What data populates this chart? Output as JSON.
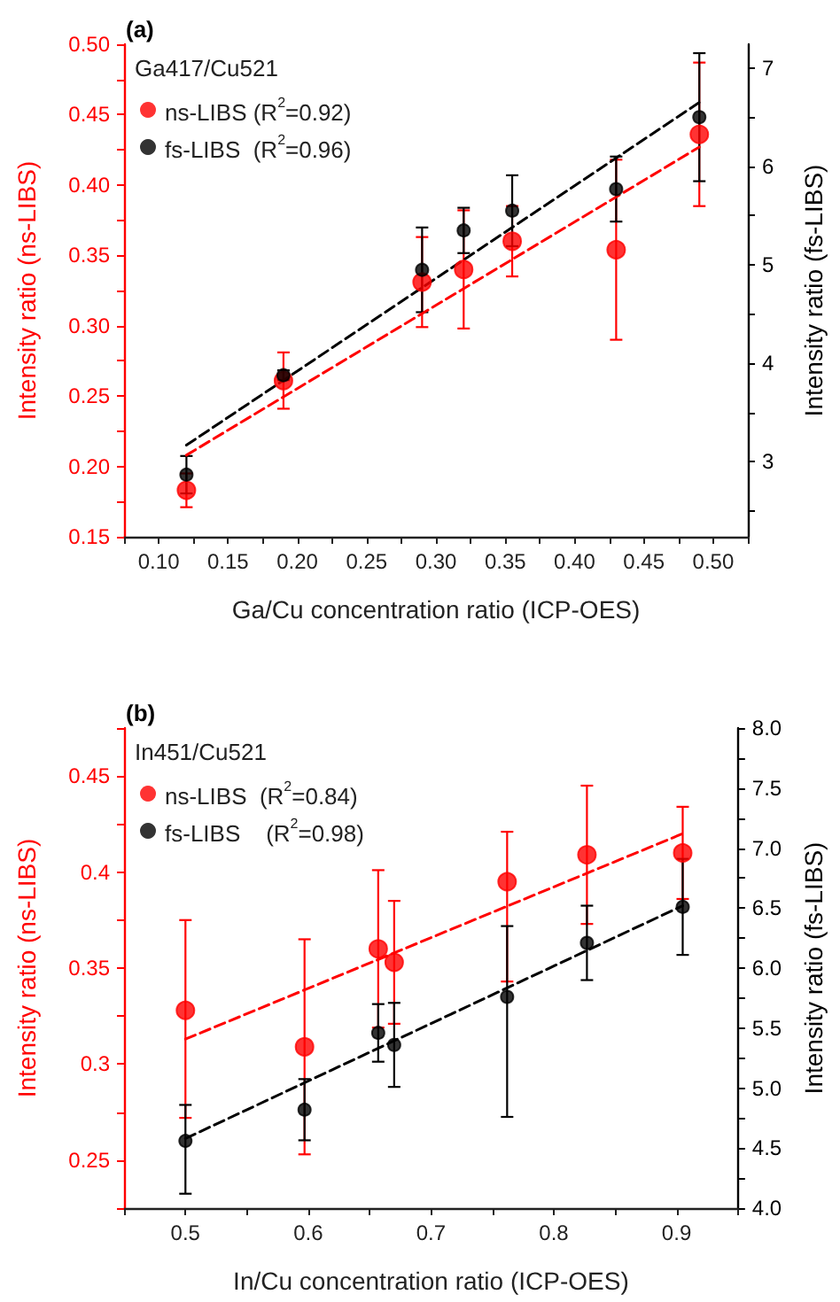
{
  "chart_data": [
    {
      "type": "scatter",
      "title": "(a)",
      "legend_title": "Ga417/Cu521",
      "xlabel": "Ga/Cu concentration ratio (ICP-OES)",
      "ylabel": "Intensity ratio (ns-LIBS)",
      "y2label": "Intensity ratio (fs-LIBS)",
      "legend": "top left",
      "grid": false,
      "marker": "circle",
      "x": [
        0.12,
        0.19,
        0.29,
        0.32,
        0.355,
        0.43,
        0.49
      ],
      "xlim": [
        0.075,
        0.525
      ],
      "xticks": [
        {
          "value": 0.075,
          "label": null
        },
        {
          "value": 0.1,
          "label": "0.10"
        },
        {
          "value": 0.125,
          "label": null
        },
        {
          "value": 0.15,
          "label": "0.15"
        },
        {
          "value": 0.175,
          "label": null
        },
        {
          "value": 0.2,
          "label": "0.20"
        },
        {
          "value": 0.225,
          "label": null
        },
        {
          "value": 0.25,
          "label": "0.25"
        },
        {
          "value": 0.275,
          "label": null
        },
        {
          "value": 0.3,
          "label": "0.30"
        },
        {
          "value": 0.325,
          "label": null
        },
        {
          "value": 0.35,
          "label": "0.35"
        },
        {
          "value": 0.375,
          "label": null
        },
        {
          "value": 0.4,
          "label": "0.40"
        },
        {
          "value": 0.425,
          "label": null
        },
        {
          "value": 0.45,
          "label": "0.45"
        },
        {
          "value": 0.475,
          "label": null
        },
        {
          "value": 0.5,
          "label": "0.50"
        },
        {
          "value": 0.525,
          "label": null
        }
      ],
      "ylim": [
        0.15,
        0.5
      ],
      "yticks": [
        {
          "value": 0.15,
          "label": "0.15"
        },
        {
          "value": 0.175,
          "label": null
        },
        {
          "value": 0.2,
          "label": "0.20"
        },
        {
          "value": 0.225,
          "label": null
        },
        {
          "value": 0.25,
          "label": "0.25"
        },
        {
          "value": 0.275,
          "label": null
        },
        {
          "value": 0.3,
          "label": "0.30"
        },
        {
          "value": 0.325,
          "label": null
        },
        {
          "value": 0.35,
          "label": "0.35"
        },
        {
          "value": 0.375,
          "label": null
        },
        {
          "value": 0.4,
          "label": "0.40"
        },
        {
          "value": 0.425,
          "label": null
        },
        {
          "value": 0.45,
          "label": "0.45"
        },
        {
          "value": 0.475,
          "label": null
        },
        {
          "value": 0.5,
          "label": "0.50"
        }
      ],
      "y2lim": [
        2.24,
        7.24
      ],
      "y2ticks": [
        {
          "value": 2.5,
          "label": null
        },
        3,
        {
          "value": 3.5,
          "label": null
        },
        4,
        {
          "value": 4.5,
          "label": null
        },
        5,
        {
          "value": 5.5,
          "label": null
        },
        6,
        {
          "value": 6.5,
          "label": null
        },
        7
      ],
      "series": [
        {
          "name": "ns-LIBS (R$^{2}$=0.92)",
          "color": "#ff0000",
          "axis": "y",
          "values": [
            0.183,
            0.261,
            0.331,
            0.34,
            0.36,
            0.354,
            0.436
          ],
          "errors": [
            0.012,
            0.02,
            0.032,
            0.042,
            0.025,
            0.064,
            0.051
          ]
        },
        {
          "name": "fs-LIBS  (R$^{2}$=0.96)",
          "color": "#000000",
          "axis": "y2",
          "values": [
            2.87,
            3.88,
            4.95,
            5.35,
            5.55,
            5.77,
            6.5
          ],
          "errors": [
            0.19,
            0.05,
            0.43,
            0.23,
            0.36,
            0.33,
            0.65
          ]
        },
        {
          "type": "line",
          "color": "#ff0000",
          "axis": "y",
          "line_style": "dashed",
          "marker": "none",
          "x": [
            0.12,
            0.49
          ],
          "values": [
            0.208,
            0.427
          ]
        },
        {
          "type": "line",
          "color": "#000000",
          "axis": "y2",
          "line_style": "dashed",
          "marker": "none",
          "x": [
            0.12,
            0.49
          ],
          "values": [
            3.17,
            6.65
          ]
        }
      ]
    },
    {
      "type": "scatter",
      "title": "(b)",
      "legend_title": "In451/Cu521",
      "xlabel": "In/Cu concentration ratio (ICP-OES)",
      "ylabel": "Intensity ratio (ns-LIBS)",
      "y2label": "Intensity ratio (fs-LIBS)",
      "legend": "top left",
      "grid": false,
      "marker": "circle",
      "x": [
        0.5,
        0.597,
        0.657,
        0.67,
        0.762,
        0.827,
        0.905
      ],
      "xlim": [
        0.45,
        0.95
      ],
      "xticks": [
        {
          "value": 0.45,
          "label": null
        },
        0.5,
        {
          "value": 0.55,
          "label": null
        },
        0.6,
        {
          "value": 0.65,
          "label": null
        },
        0.7,
        {
          "value": 0.75,
          "label": null
        },
        0.8,
        {
          "value": 0.85,
          "label": null
        },
        0.9,
        {
          "value": 0.95,
          "label": null
        }
      ],
      "ylim": [
        0.225,
        0.475
      ],
      "yticks": [
        {
          "value": 0.225,
          "label": null
        },
        0.25,
        {
          "value": 0.275,
          "label": null
        },
        0.3,
        {
          "value": 0.325,
          "label": null
        },
        0.35,
        {
          "value": 0.375,
          "label": null
        },
        0.4,
        {
          "value": 0.425,
          "label": null
        },
        0.45,
        {
          "value": 0.475,
          "label": null
        }
      ],
      "y2lim": [
        4,
        8
      ],
      "y2ticks": [
        {
          "value": 4,
          "label": "4.0"
        },
        {
          "value": 4.25,
          "label": null
        },
        4.5,
        {
          "value": 4.75,
          "label": null
        },
        {
          "value": 5,
          "label": "5.0"
        },
        {
          "value": 5.25,
          "label": null
        },
        5.5,
        {
          "value": 5.75,
          "label": null
        },
        {
          "value": 6,
          "label": "6.0"
        },
        {
          "value": 6.25,
          "label": null
        },
        6.5,
        {
          "value": 6.75,
          "label": null
        },
        {
          "value": 7,
          "label": "7.0"
        },
        {
          "value": 7.25,
          "label": null
        },
        7.5,
        {
          "value": 7.75,
          "label": null
        },
        {
          "value": 8,
          "label": "8.0"
        }
      ],
      "series": [
        {
          "name": "ns-LIBS  (R$^{2}$=0.84)",
          "color": "#ff0000",
          "axis": "y",
          "values": [
            0.328,
            0.309,
            0.36,
            0.353,
            0.395,
            0.409,
            0.41
          ],
          "errors": [
            [
              0.272,
              0.375
            ],
            0.056,
            0.041,
            0.032,
            [
              0.343,
              0.421
            ],
            0.036,
            0.024
          ]
        },
        {
          "name": "fs-LIBS    (R$^{2}$=0.98)",
          "color": "#000000",
          "axis": "y2",
          "values": [
            4.56,
            4.82,
            5.46,
            5.36,
            5.76,
            6.21,
            6.51
          ],
          "errors": [
            [
              4.12,
              4.86
            ],
            0.255,
            0.24,
            0.35,
            [
              4.76,
              6.35
            ],
            0.31,
            0.4
          ]
        },
        {
          "type": "line",
          "color": "#ff0000",
          "axis": "y",
          "line_style": "dashed",
          "marker": "none",
          "x": [
            0.5,
            0.905
          ],
          "values": [
            0.313,
            0.42
          ]
        },
        {
          "type": "line",
          "color": "#000000",
          "axis": "y2",
          "line_style": "dashed",
          "marker": "none",
          "x": [
            0.5,
            0.905
          ],
          "values": [
            4.58,
            6.52
          ]
        }
      ]
    }
  ]
}
